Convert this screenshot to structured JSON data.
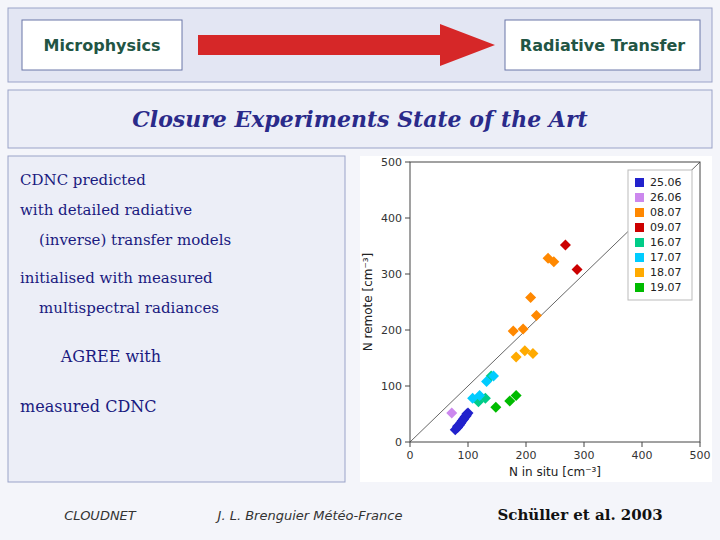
{
  "chart_data": {
    "type": "scatter",
    "title": "Closure Experiments State of the Art",
    "annotations": [
      "Microphysics",
      "Radiative Transfer",
      "CDNC predicted",
      "with detailed radiative",
      "    (inverse) transfer models",
      "initialised with measured",
      "    multispectral radiances",
      "        AGREE with",
      "measured CDNC",
      "CLOUDNET",
      "J. L. Brenguier Météo-France",
      "Schüller et al. 2003"
    ],
    "xlabel": "N in situ [cm⁻³]",
    "ylabel": "N remote [cm⁻³]",
    "xlim": [
      0,
      500
    ],
    "ylim": [
      0,
      500
    ],
    "xticks": [
      0,
      100,
      200,
      300,
      400,
      500
    ],
    "yticks": [
      0,
      100,
      200,
      300,
      400,
      500
    ],
    "grid": false,
    "legend": "upper right",
    "marker": "diamond",
    "series": [
      {
        "name": "25.06",
        "color": "#2222cc",
        "x": [
          78,
          82,
          87,
          90,
          93,
          97,
          100,
          85,
          88,
          92,
          95,
          98,
          82
        ],
        "values": [
          22,
          28,
          33,
          38,
          42,
          47,
          52,
          30,
          35,
          40,
          45,
          50,
          26
        ]
      },
      {
        "name": "26.06",
        "color": "#cc88ee",
        "x": [
          72
        ],
        "values": [
          52
        ]
      },
      {
        "name": "08.07",
        "color": "#ff8800",
        "x": [
          178,
          195,
          208,
          218,
          238,
          248
        ],
        "values": [
          198,
          202,
          258,
          226,
          328,
          322
        ]
      },
      {
        "name": "09.07",
        "color": "#cc0000",
        "x": [
          268,
          288
        ],
        "values": [
          352,
          308
        ]
      },
      {
        "name": "16.07",
        "color": "#00cc88",
        "x": [
          118,
          130,
          140
        ],
        "values": [
          72,
          78,
          118
        ]
      },
      {
        "name": "17.07",
        "color": "#00ccff",
        "x": [
          108,
          120,
          132,
          144
        ],
        "values": [
          78,
          83,
          108,
          118
        ]
      },
      {
        "name": "18.07",
        "color": "#ffaa00",
        "x": [
          183,
          198,
          212
        ],
        "values": [
          152,
          163,
          158
        ]
      },
      {
        "name": "19.07",
        "color": "#00bb00",
        "x": [
          148,
          172,
          183
        ],
        "values": [
          62,
          73,
          83
        ]
      }
    ]
  }
}
